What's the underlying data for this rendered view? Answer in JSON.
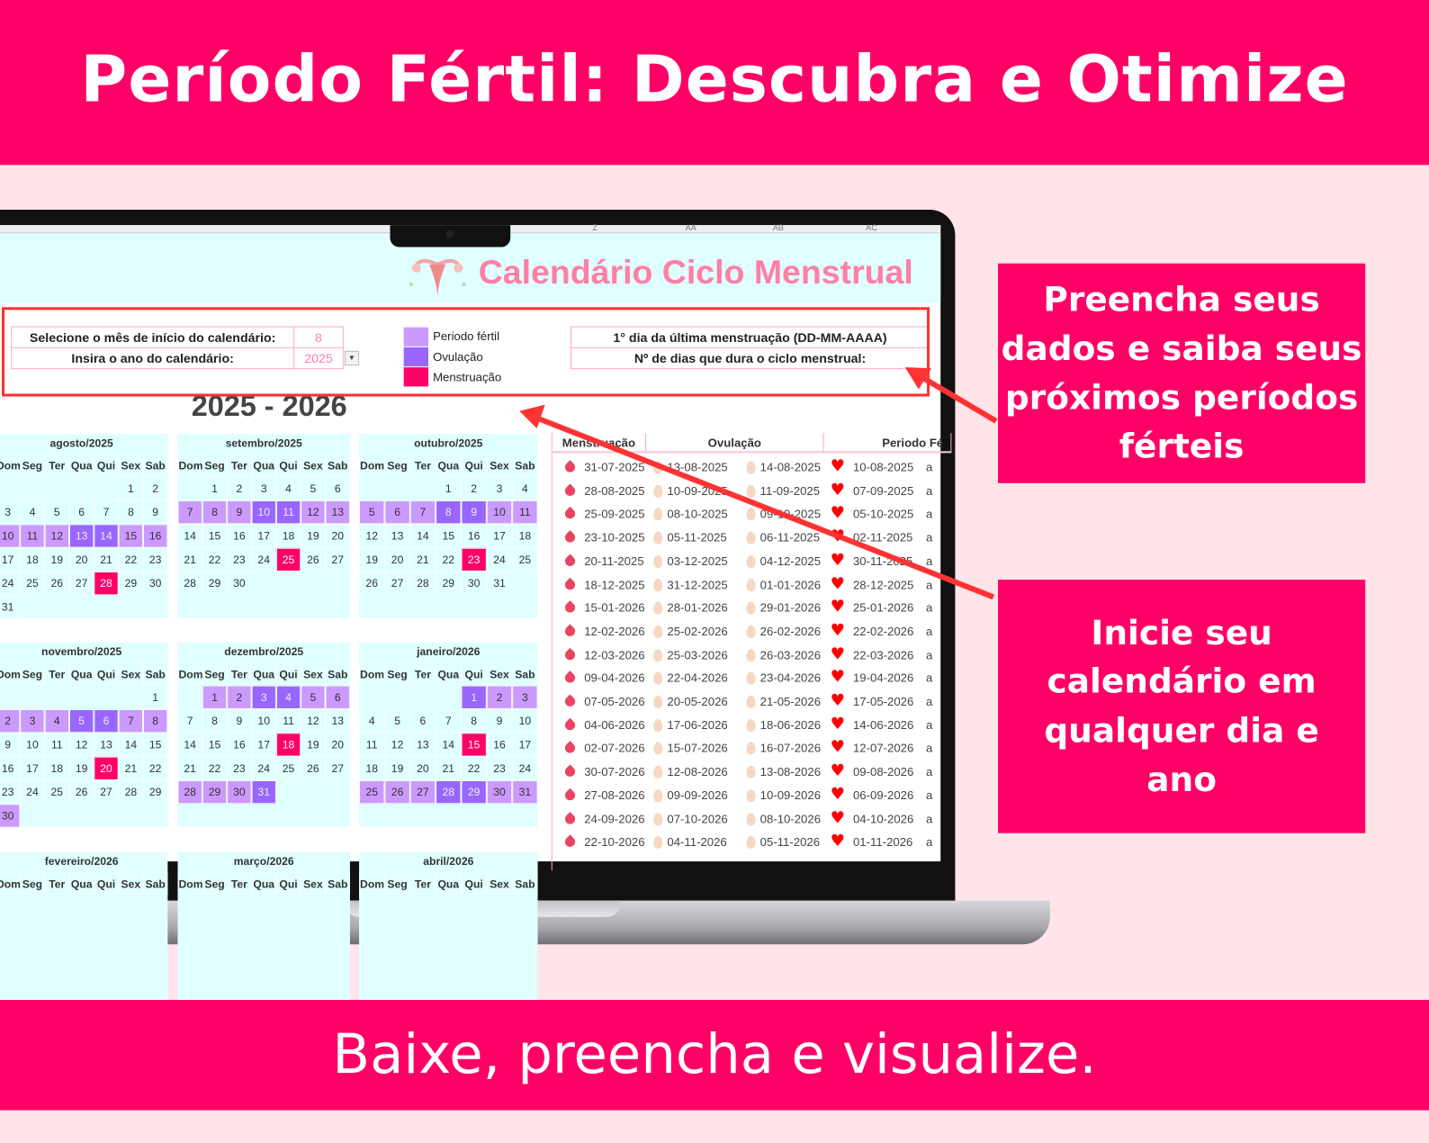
{
  "banner_top": "Período Fértil: Descubra e Otimize",
  "banner_bottom": "Baixe, preencha e visualize.",
  "callouts": [
    "Preencha seus dados e saiba seus próximos períodos férteis",
    "Inicie seu calendário em qualquer dia e ano"
  ],
  "sheet": {
    "column_letters": [
      "Z",
      "AA",
      "AB",
      "AC"
    ],
    "title": "Calendário Ciclo Menstrual",
    "inputs": {
      "month_label": "Selecione o mês de início do calendário:",
      "month_value": "8",
      "year_label": "Insira o ano do calendário:",
      "year_value": "2025"
    },
    "legend": [
      {
        "label": "Periodo fértil",
        "color": "#CC99FF"
      },
      {
        "label": "Ovulação",
        "color": "#9966FF"
      },
      {
        "label": "Menstruação",
        "color": "#FF0066"
      }
    ],
    "cycle_inputs": {
      "first_day_label": "1° dia da última menstruação (DD-MM-AAAA)",
      "cycle_length_label": "Nº de dias que dura o ciclo menstrual:"
    },
    "years": "2025 - 2026",
    "weekdays": [
      "Dom",
      "Seg",
      "Ter",
      "Qua",
      "Qui",
      "Sex",
      "Sab"
    ],
    "months": [
      {
        "title": "agosto/2025",
        "first_weekday": 5,
        "days": 31,
        "fertile": [
          10,
          11,
          12,
          15,
          16
        ],
        "ovulation": [
          13,
          14
        ],
        "menstruation": [
          28
        ]
      },
      {
        "title": "setembro/2025",
        "first_weekday": 1,
        "days": 30,
        "fertile": [
          7,
          8,
          9,
          12,
          13
        ],
        "ovulation": [
          10,
          11
        ],
        "menstruation": [
          25
        ]
      },
      {
        "title": "outubro/2025",
        "first_weekday": 3,
        "days": 31,
        "fertile": [
          5,
          6,
          7,
          10,
          11
        ],
        "ovulation": [
          8,
          9
        ],
        "menstruation": [
          23
        ]
      },
      {
        "title": "novembro/2025",
        "first_weekday": 6,
        "days": 30,
        "fertile": [
          2,
          3,
          4,
          7,
          8,
          30
        ],
        "ovulation": [
          5,
          6
        ],
        "menstruation": [
          20
        ]
      },
      {
        "title": "dezembro/2025",
        "first_weekday": 1,
        "days": 31,
        "fertile": [
          1,
          2,
          5,
          6,
          28,
          29,
          30
        ],
        "ovulation": [
          3,
          4,
          31
        ],
        "menstruation": [
          18
        ]
      },
      {
        "title": "janeiro/2026",
        "first_weekday": 4,
        "days": 31,
        "fertile": [
          2,
          3,
          25,
          26,
          27,
          30,
          31
        ],
        "ovulation": [
          1,
          28,
          29
        ],
        "menstruation": [
          15
        ]
      },
      {
        "title": "fevereiro/2026"
      },
      {
        "title": "março/2026"
      },
      {
        "title": "abril/2026"
      }
    ],
    "table": {
      "headers": [
        "Menstruação",
        "Ovulação",
        "Periodo Fé"
      ],
      "to_label": "a",
      "rows": [
        [
          "31-07-2025",
          "13-08-2025",
          "14-08-2025",
          "10-08-2025"
        ],
        [
          "28-08-2025",
          "10-09-2025",
          "11-09-2025",
          "07-09-2025"
        ],
        [
          "25-09-2025",
          "08-10-2025",
          "09-10-2025",
          "05-10-2025"
        ],
        [
          "23-10-2025",
          "05-11-2025",
          "06-11-2025",
          "02-11-2025"
        ],
        [
          "20-11-2025",
          "03-12-2025",
          "04-12-2025",
          "30-11-2025"
        ],
        [
          "18-12-2025",
          "31-12-2025",
          "01-01-2026",
          "28-12-2025"
        ],
        [
          "15-01-2026",
          "28-01-2026",
          "29-01-2026",
          "25-01-2026"
        ],
        [
          "12-02-2026",
          "25-02-2026",
          "26-02-2026",
          "22-02-2026"
        ],
        [
          "12-03-2026",
          "25-03-2026",
          "26-03-2026",
          "22-03-2026"
        ],
        [
          "09-04-2026",
          "22-04-2026",
          "23-04-2026",
          "19-04-2026"
        ],
        [
          "07-05-2026",
          "20-05-2026",
          "21-05-2026",
          "17-05-2026"
        ],
        [
          "04-06-2026",
          "17-06-2026",
          "18-06-2026",
          "14-06-2026"
        ],
        [
          "02-07-2026",
          "15-07-2026",
          "16-07-2026",
          "12-07-2026"
        ],
        [
          "30-07-2026",
          "12-08-2026",
          "13-08-2026",
          "09-08-2026"
        ],
        [
          "27-08-2026",
          "09-09-2026",
          "10-09-2026",
          "06-09-2026"
        ],
        [
          "24-09-2026",
          "07-10-2026",
          "08-10-2026",
          "04-10-2026"
        ],
        [
          "22-10-2026",
          "04-11-2026",
          "05-11-2026",
          "01-11-2026"
        ]
      ]
    }
  },
  "colors": {
    "brand": "#FF0066",
    "background": "#FFE4EA",
    "fertile": "#CC99FF",
    "ovulation": "#9966FF",
    "menstruation": "#FF0066",
    "sheet_header": "#E0FFFF"
  }
}
